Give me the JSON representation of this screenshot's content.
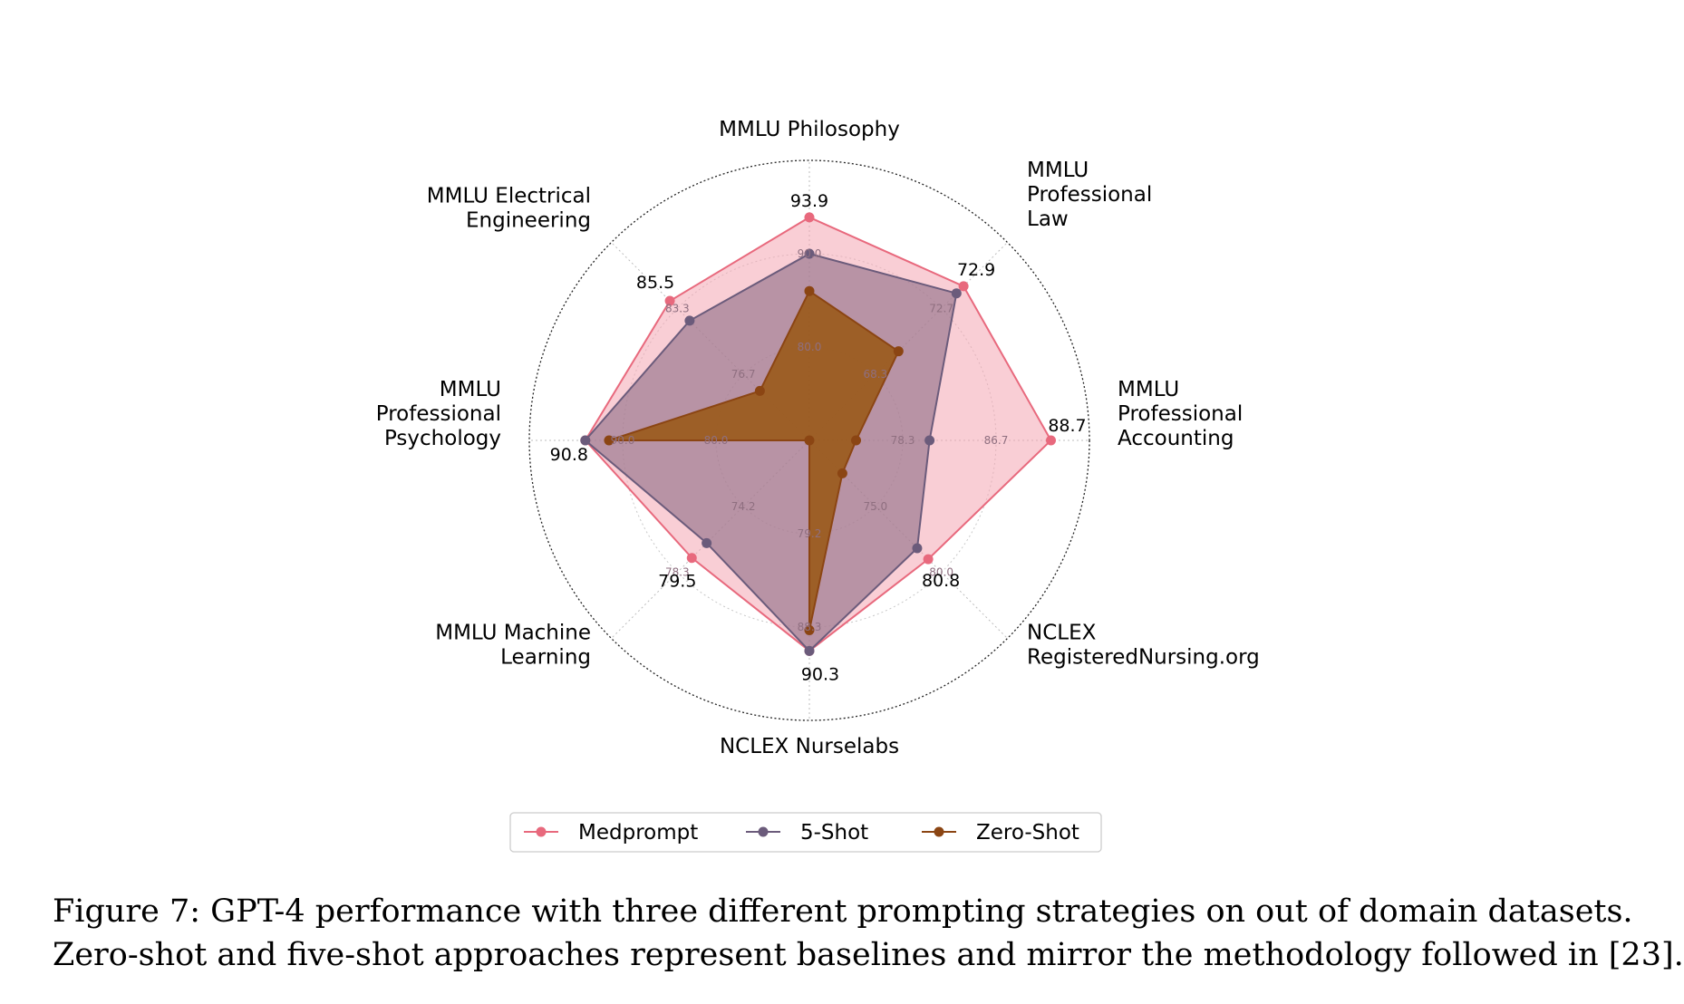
{
  "chart_data": {
    "type": "radar",
    "axes": [
      {
        "label": [
          "MMLU Philosophy"
        ],
        "ticks": [
          "80.0",
          "90.0"
        ]
      },
      {
        "label": [
          "MMLU",
          "Professional",
          "Law"
        ],
        "ticks": [
          "68.3",
          "72.7"
        ]
      },
      {
        "label": [
          "MMLU",
          "Professional",
          "Accounting"
        ],
        "ticks": [
          "78.3",
          "86.7"
        ]
      },
      {
        "label": [
          "NCLEX",
          "RegisteredNursing.org"
        ],
        "ticks": [
          "75.0",
          "80.0"
        ]
      },
      {
        "label": [
          "NCLEX Nurselabs"
        ],
        "ticks": [
          "79.2",
          "88.3"
        ]
      },
      {
        "label": [
          "MMLU Machine",
          "Learning"
        ],
        "ticks": [
          "74.2",
          "78.3"
        ]
      },
      {
        "label": [
          "MMLU",
          "Professional",
          "Psychology"
        ],
        "ticks": [
          "80.0",
          "90.0"
        ]
      },
      {
        "label": [
          "MMLU Electrical",
          "Engineering"
        ],
        "ticks": [
          "76.7",
          "83.3"
        ]
      }
    ],
    "value_labels": [
      "93.9",
      "72.9",
      "88.7",
      "80.8",
      "90.3",
      "79.5",
      "90.8",
      "85.5"
    ],
    "series": [
      {
        "name": "Medprompt",
        "color": "#e8697d",
        "fill": "#f4a6b2",
        "values": [
          93.9,
          72.9,
          88.7,
          80.8,
          90.3,
          79.5,
          90.8,
          85.5
        ]
      },
      {
        "name": "5-Shot",
        "color": "#6b5b7b",
        "fill": "#8f6f88",
        "values": [
          90.0,
          72.4,
          78.3,
          79.8,
          90.3,
          78.3,
          90.8,
          83.3
        ]
      },
      {
        "name": "Zero-Shot",
        "color": "#8b4513",
        "fill": "#9a5a1a",
        "values": [
          86.0,
          68.3,
          72.0,
          73.0,
          88.3,
          69.5,
          88.6,
          75.5
        ]
      }
    ],
    "grid": true,
    "legend_position": "bottom"
  },
  "caption": {
    "line1": "Figure 7: GPT-4 performance with three different prompting strategies on out of domain datasets.",
    "line2": "Zero-shot and five-shot approaches represent baselines and mirror the methodology followed in [23]."
  }
}
